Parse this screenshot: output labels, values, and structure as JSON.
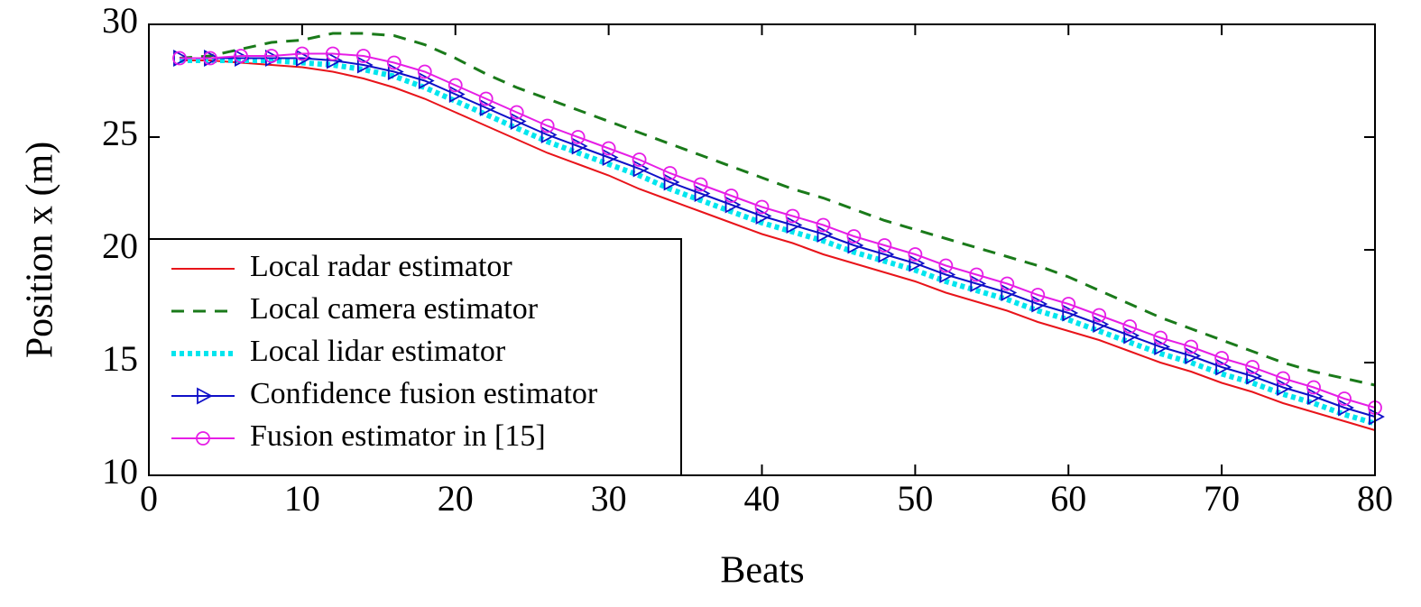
{
  "chart_data": {
    "type": "line",
    "xlabel": "Beats",
    "ylabel": "Position x (m)",
    "x": [
      2,
      4,
      6,
      8,
      10,
      12,
      14,
      16,
      18,
      20,
      22,
      24,
      26,
      28,
      30,
      32,
      34,
      36,
      38,
      40,
      42,
      44,
      46,
      48,
      50,
      52,
      54,
      56,
      58,
      60,
      62,
      64,
      66,
      68,
      70,
      72,
      74,
      76,
      78,
      80
    ],
    "xlim": [
      0,
      80
    ],
    "xticks": [
      0,
      10,
      20,
      30,
      40,
      50,
      60,
      70,
      80
    ],
    "ylim": [
      10,
      30
    ],
    "yticks": [
      10,
      15,
      20,
      25,
      30
    ],
    "grid": false,
    "legend": "lower left",
    "series": [
      {
        "name": "Local radar estimator",
        "color": "#e8141a",
        "style": "solid",
        "marker": "none",
        "values": [
          28.4,
          28.4,
          28.3,
          28.2,
          28.1,
          27.9,
          27.6,
          27.2,
          26.7,
          26.1,
          25.5,
          24.9,
          24.3,
          23.8,
          23.3,
          22.7,
          22.2,
          21.7,
          21.2,
          20.7,
          20.3,
          19.8,
          19.4,
          19.0,
          18.6,
          18.1,
          17.7,
          17.3,
          16.8,
          16.4,
          16.0,
          15.5,
          15.0,
          14.6,
          14.1,
          13.7,
          13.2,
          12.8,
          12.4,
          12.0
        ]
      },
      {
        "name": "Local camera estimator",
        "color": "#1a7a1a",
        "style": "dashed",
        "marker": "none",
        "values": [
          28.5,
          28.6,
          28.9,
          29.2,
          29.3,
          29.6,
          29.6,
          29.5,
          29.1,
          28.5,
          27.8,
          27.2,
          26.7,
          26.2,
          25.7,
          25.2,
          24.7,
          24.2,
          23.7,
          23.2,
          22.7,
          22.3,
          21.8,
          21.3,
          20.9,
          20.5,
          20.1,
          19.7,
          19.3,
          18.8,
          18.2,
          17.6,
          17.0,
          16.5,
          16.0,
          15.5,
          15.0,
          14.6,
          14.3,
          14.0
        ]
      },
      {
        "name": "Local lidar estimator",
        "color": "#00e5ee",
        "style": "dotted",
        "marker": "none",
        "values": [
          28.4,
          28.4,
          28.4,
          28.4,
          28.3,
          28.2,
          28.0,
          27.7,
          27.2,
          26.6,
          26.0,
          25.4,
          24.8,
          24.3,
          23.8,
          23.3,
          22.7,
          22.2,
          21.7,
          21.2,
          20.8,
          20.4,
          19.9,
          19.5,
          19.1,
          18.6,
          18.2,
          17.8,
          17.3,
          16.9,
          16.4,
          15.9,
          15.4,
          15.0,
          14.5,
          14.1,
          13.6,
          13.2,
          12.7,
          12.3
        ]
      },
      {
        "name": "Confidence fusion estimator",
        "color": "#1010c8",
        "style": "solid",
        "marker": "triangle",
        "values": [
          28.5,
          28.5,
          28.5,
          28.5,
          28.5,
          28.4,
          28.2,
          27.9,
          27.5,
          26.9,
          26.3,
          25.7,
          25.1,
          24.6,
          24.1,
          23.6,
          23.0,
          22.5,
          22.0,
          21.5,
          21.1,
          20.7,
          20.2,
          19.8,
          19.4,
          18.9,
          18.5,
          18.1,
          17.6,
          17.2,
          16.7,
          16.2,
          15.7,
          15.3,
          14.8,
          14.4,
          13.9,
          13.5,
          13.0,
          12.6
        ]
      },
      {
        "name": "Fusion estimator in [15]",
        "color": "#e61ee6",
        "style": "solid",
        "marker": "circle",
        "values": [
          28.5,
          28.5,
          28.6,
          28.6,
          28.7,
          28.7,
          28.6,
          28.3,
          27.9,
          27.3,
          26.7,
          26.1,
          25.5,
          25.0,
          24.5,
          24.0,
          23.4,
          22.9,
          22.4,
          21.9,
          21.5,
          21.1,
          20.6,
          20.2,
          19.8,
          19.3,
          18.9,
          18.5,
          18.0,
          17.6,
          17.1,
          16.6,
          16.1,
          15.7,
          15.2,
          14.8,
          14.3,
          13.9,
          13.4,
          13.0
        ]
      }
    ]
  }
}
